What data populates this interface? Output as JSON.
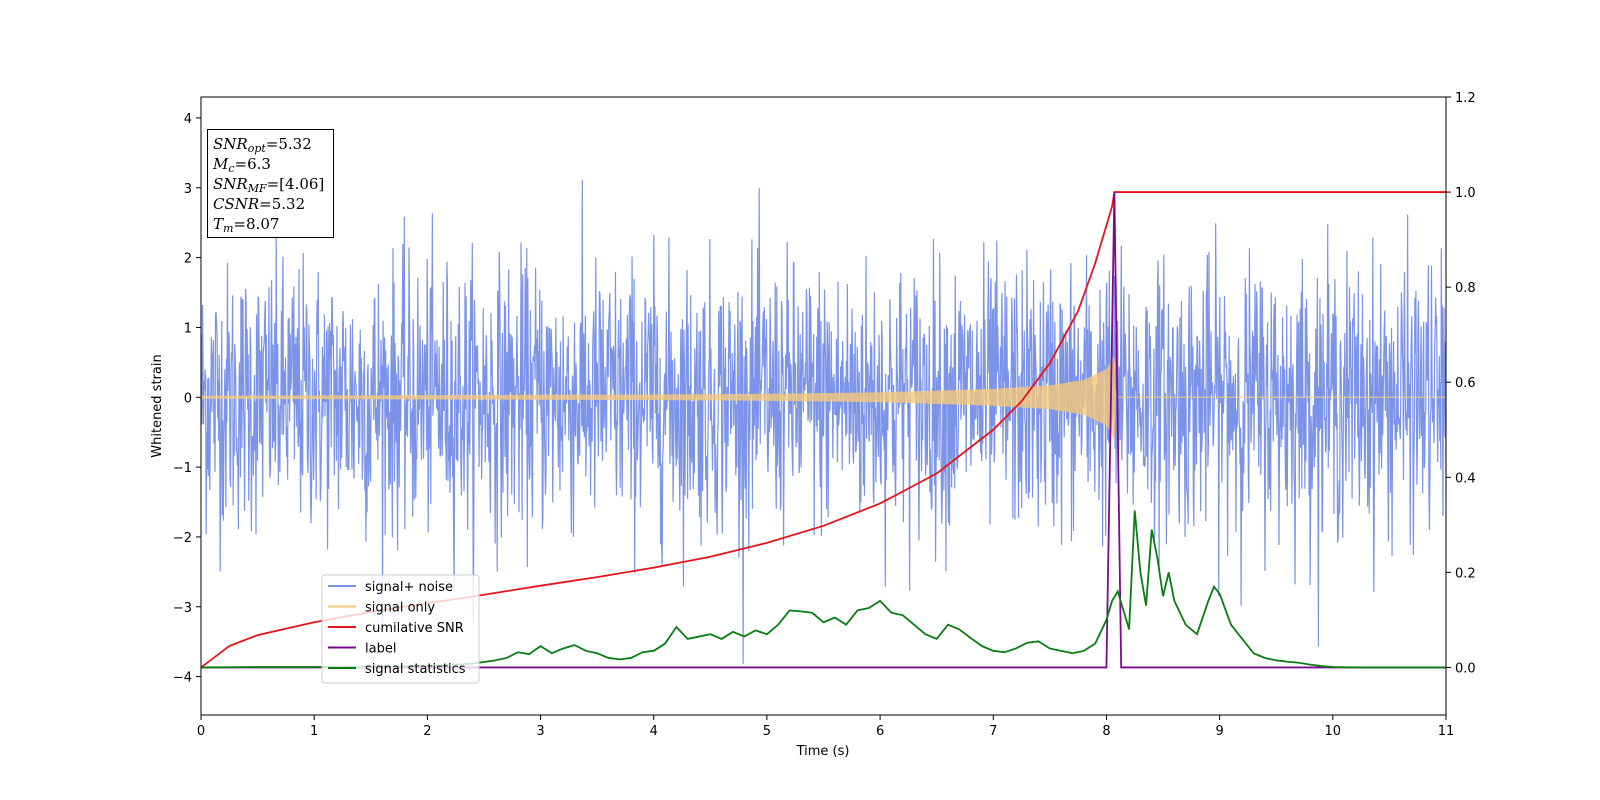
{
  "chart_data": {
    "type": "line",
    "xlabel": "Time (s)",
    "ylabel": "Whitened strain",
    "xlim": [
      0,
      11
    ],
    "ylim_left": [
      -4.55,
      4.3
    ],
    "ylim_right": [
      -0.1,
      1.2
    ],
    "xticks": [
      "0",
      "1",
      "2",
      "3",
      "4",
      "5",
      "6",
      "7",
      "8",
      "9",
      "10",
      "11"
    ],
    "yticks_left": [
      "4",
      "3",
      "2",
      "1",
      "0",
      "−1",
      "−2",
      "−3",
      "−4"
    ],
    "yticks_right": [
      "1.2",
      "1.0",
      "0.8",
      "0.6",
      "0.4",
      "0.2",
      "0.0"
    ],
    "legend_placement": "lower-left",
    "series": [
      {
        "name": "signal+ noise",
        "color": "#7b93e8",
        "axis": "left",
        "description_values": "gaussian noise, std ~0.95, range about -4.2 to 3.9"
      },
      {
        "name": "signal only",
        "color": "#f5c97b",
        "axis": "left",
        "x": [
          0,
          2,
          4,
          5,
          6,
          7,
          7.5,
          7.8,
          8.0,
          8.07,
          8.08,
          11
        ],
        "amplitude": [
          0.02,
          0.03,
          0.04,
          0.05,
          0.07,
          0.12,
          0.17,
          0.25,
          0.4,
          0.6,
          0,
          0
        ]
      },
      {
        "name": "cumilative SNR",
        "color": "#e8141b",
        "axis": "right",
        "x": [
          0,
          0.25,
          0.5,
          1,
          1.5,
          2,
          2.5,
          3,
          3.5,
          4,
          4.5,
          5,
          5.5,
          6,
          6.5,
          7,
          7.25,
          7.5,
          7.75,
          7.9,
          8.0,
          8.05,
          8.07,
          11
        ],
        "y": [
          0.0,
          0.045,
          0.068,
          0.095,
          0.117,
          0.135,
          0.153,
          0.172,
          0.19,
          0.21,
          0.233,
          0.262,
          0.298,
          0.345,
          0.408,
          0.5,
          0.56,
          0.64,
          0.75,
          0.85,
          0.93,
          0.97,
          1.0,
          1.0
        ]
      },
      {
        "name": "label",
        "color": "#7b0a8f",
        "axis": "right",
        "x": [
          0,
          8.0,
          8.07,
          8.13,
          11
        ],
        "y": [
          0,
          0,
          1.0,
          0,
          0
        ]
      },
      {
        "name": "signal statistics",
        "color": "#0a7d12",
        "axis": "right",
        "x": [
          0,
          0.5,
          1,
          1.5,
          2,
          2.4,
          2.6,
          2.7,
          2.8,
          2.9,
          3.0,
          3.1,
          3.2,
          3.3,
          3.4,
          3.5,
          3.6,
          3.7,
          3.8,
          3.9,
          4.0,
          4.1,
          4.2,
          4.3,
          4.4,
          4.5,
          4.6,
          4.7,
          4.8,
          4.9,
          5.0,
          5.1,
          5.2,
          5.3,
          5.4,
          5.5,
          5.6,
          5.7,
          5.8,
          5.9,
          6.0,
          6.1,
          6.2,
          6.3,
          6.4,
          6.5,
          6.6,
          6.7,
          6.8,
          6.9,
          7.0,
          7.1,
          7.2,
          7.3,
          7.4,
          7.5,
          7.6,
          7.7,
          7.8,
          7.9,
          8.0,
          8.05,
          8.1,
          8.15,
          8.2,
          8.25,
          8.3,
          8.35,
          8.4,
          8.45,
          8.5,
          8.55,
          8.6,
          8.7,
          8.8,
          8.9,
          8.95,
          9.0,
          9.1,
          9.2,
          9.3,
          9.4,
          9.5,
          9.6,
          9.7,
          9.8,
          9.9,
          10.0,
          10.2,
          10.5,
          11
        ],
        "y": [
          0.0,
          0.001,
          0.001,
          0.002,
          0.003,
          0.008,
          0.015,
          0.02,
          0.032,
          0.028,
          0.045,
          0.03,
          0.04,
          0.047,
          0.035,
          0.03,
          0.02,
          0.017,
          0.02,
          0.032,
          0.035,
          0.05,
          0.085,
          0.06,
          0.065,
          0.07,
          0.06,
          0.075,
          0.065,
          0.078,
          0.07,
          0.09,
          0.12,
          0.118,
          0.115,
          0.095,
          0.105,
          0.09,
          0.12,
          0.125,
          0.14,
          0.115,
          0.11,
          0.09,
          0.07,
          0.06,
          0.09,
          0.08,
          0.062,
          0.045,
          0.035,
          0.032,
          0.04,
          0.052,
          0.055,
          0.04,
          0.035,
          0.03,
          0.035,
          0.05,
          0.1,
          0.14,
          0.16,
          0.12,
          0.08,
          0.33,
          0.2,
          0.13,
          0.29,
          0.23,
          0.15,
          0.2,
          0.14,
          0.09,
          0.07,
          0.14,
          0.17,
          0.155,
          0.09,
          0.06,
          0.03,
          0.02,
          0.015,
          0.012,
          0.01,
          0.006,
          0.003,
          0.001,
          0.0,
          0.0,
          0.0
        ]
      }
    ],
    "annotation_box": {
      "snr_opt_sym": "SNR",
      "snr_opt_sub": "opt",
      "snr_opt_val": "=5.32",
      "mc_sym": "M",
      "mc_sub": "c",
      "mc_val": "=6.3",
      "snr_mf_sym": "SNR",
      "snr_mf_sub": "MF",
      "snr_mf_val": "=[4.06]",
      "csnr_sym": "CSNR",
      "csnr_val": "=5.32",
      "tm_sym": "T",
      "tm_sub": "m",
      "tm_val": "=8.07"
    }
  }
}
